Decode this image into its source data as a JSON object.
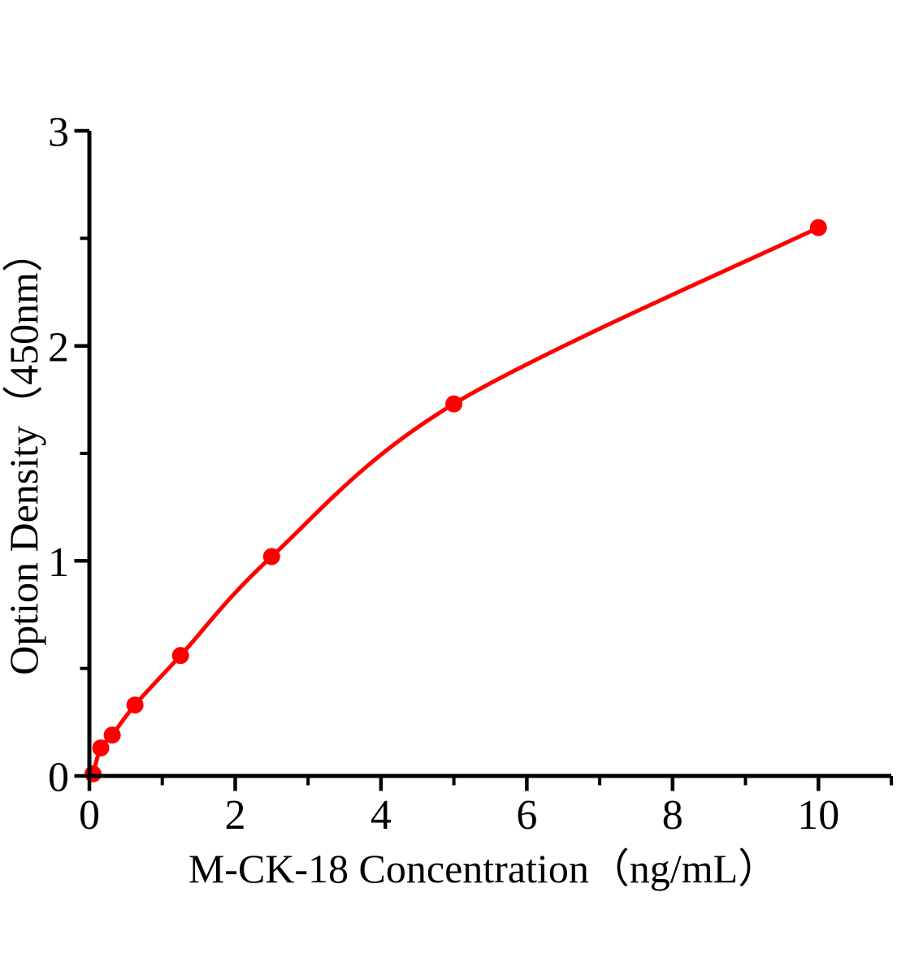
{
  "chart_data": {
    "type": "scatter",
    "subtype": "standard-curve-with-fitted-line",
    "title": "",
    "xlabel": "M-CK-18 Concentration（ng/mL）",
    "ylabel": "Option Density（450nm）",
    "x": [
      0,
      0.156,
      0.313,
      0.625,
      1.25,
      2.5,
      5,
      10
    ],
    "y": [
      0.01,
      0.13,
      0.19,
      0.33,
      0.56,
      1.02,
      1.73,
      2.55
    ],
    "xlim": [
      0,
      11
    ],
    "ylim": [
      0,
      3
    ],
    "x_ticks": {
      "major": [
        0,
        2,
        4,
        6,
        8,
        10
      ],
      "labels": [
        "0",
        "2",
        "4",
        "6",
        "8",
        "10"
      ],
      "minor": [
        1,
        3,
        5,
        7,
        9,
        11
      ]
    },
    "y_ticks": {
      "major": [
        0,
        1,
        2,
        3
      ],
      "labels": [
        "0",
        "1",
        "2",
        "3"
      ],
      "minor": [
        0.5,
        1.5,
        2.5
      ]
    },
    "grid": false,
    "legend": "none",
    "background_color": "#ffffff",
    "line_color": "#ff0000",
    "marker_color": "#ff0000",
    "marker": "circle",
    "axis_color": "#000000"
  }
}
